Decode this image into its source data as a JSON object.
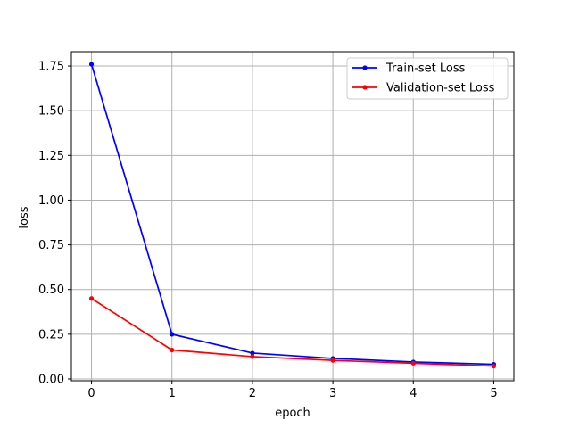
{
  "chart_data": {
    "type": "line",
    "xlabel": "epoch",
    "ylabel": "loss",
    "xlim": [
      -0.25,
      5.25
    ],
    "ylim": [
      -0.01,
      1.83
    ],
    "xticks": [
      0,
      1,
      2,
      3,
      4,
      5
    ],
    "yticks": [
      0.0,
      0.25,
      0.5,
      0.75,
      1.0,
      1.25,
      1.5,
      1.75
    ],
    "ytick_labels": [
      "0.00",
      "0.25",
      "0.50",
      "0.75",
      "1.00",
      "1.25",
      "1.50",
      "1.75"
    ],
    "grid": true,
    "legend_position": "top-right",
    "x": [
      0,
      1,
      2,
      3,
      4,
      5
    ],
    "series": [
      {
        "name": "Train-set Loss",
        "values": [
          1.76,
          0.25,
          0.145,
          0.115,
          0.095,
          0.082
        ],
        "color": "#0000ff"
      },
      {
        "name": "Validation-set Loss",
        "values": [
          0.45,
          0.162,
          0.125,
          0.104,
          0.088,
          0.072
        ],
        "color": "#ff0000"
      }
    ]
  }
}
